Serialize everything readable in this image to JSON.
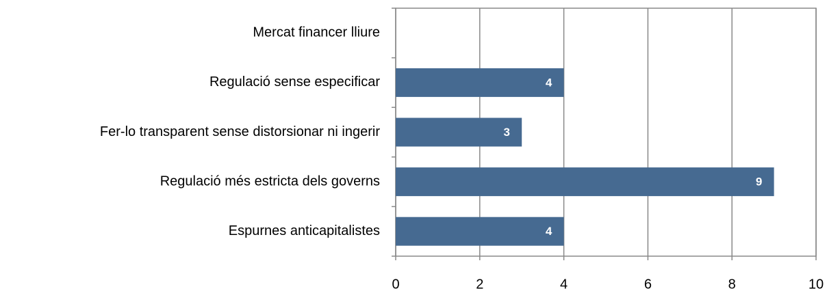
{
  "chart_data": {
    "type": "hbar",
    "categories": [
      "Mercat financer lliure",
      "Regulació sense especificar",
      "Fer-lo transparent sense distorsionar ni ingerir",
      "Regulació més estricta dels governs",
      "Espurnes anticapitalistes"
    ],
    "values": [
      0,
      4,
      3,
      9,
      4
    ],
    "color": "#466a91",
    "xlim": [
      0,
      10
    ],
    "xticks": [
      0,
      2,
      4,
      6,
      8,
      10
    ],
    "grid": true
  }
}
